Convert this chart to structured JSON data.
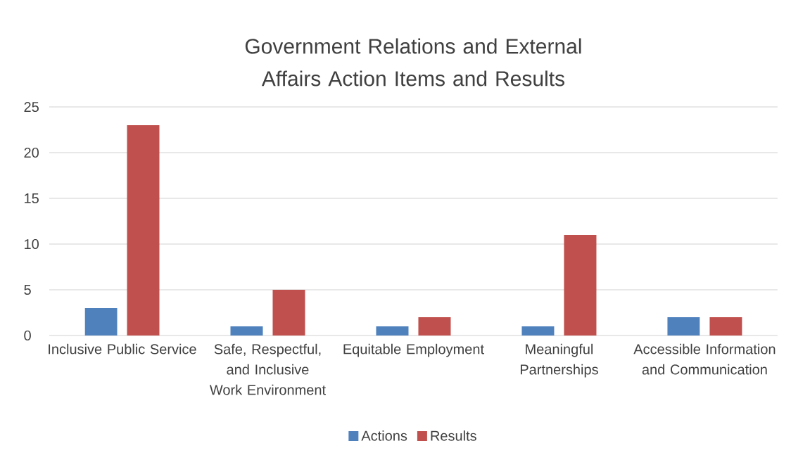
{
  "chart_data": {
    "type": "bar",
    "title": "Government Relations and External Affairs Action Items and Results",
    "categories": [
      "Inclusive Public Service",
      "Safe, Respectful, and Inclusive Work Environment",
      "Equitable Employment",
      "Meaningful Partnerships",
      "Accessible Information and Communication"
    ],
    "series": [
      {
        "name": "Actions",
        "color": "#4f81bd",
        "values": [
          3,
          1,
          1,
          1,
          2
        ]
      },
      {
        "name": "Results",
        "color": "#c0504d",
        "values": [
          23,
          5,
          2,
          11,
          2
        ]
      }
    ],
    "ylim": [
      0,
      25
    ],
    "yticks": [
      0,
      5,
      10,
      15,
      20,
      25
    ],
    "grid": "y",
    "legend": "bottom"
  }
}
